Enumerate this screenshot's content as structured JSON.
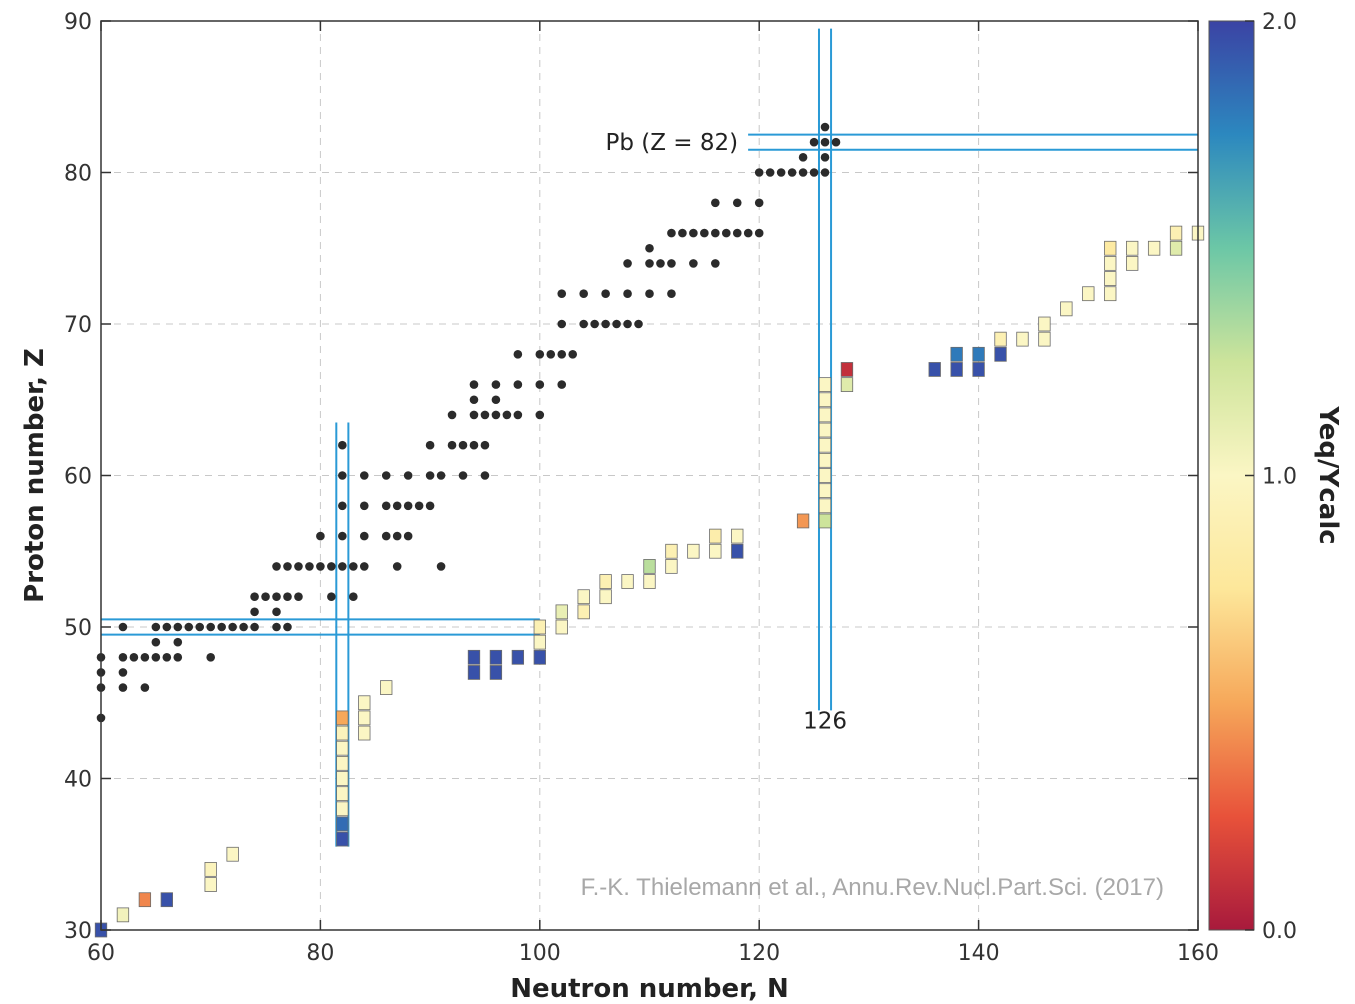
{
  "chart_data": {
    "type": "scatter",
    "xlabel": "Neutron number, N",
    "ylabel": "Proton number, Z",
    "xlim": [
      60,
      160
    ],
    "ylim": [
      30,
      90
    ],
    "xticks": [
      "60",
      "80",
      "100",
      "120",
      "140",
      "160"
    ],
    "yticks": [
      "30",
      "40",
      "50",
      "60",
      "70",
      "80",
      "90"
    ],
    "grid": true,
    "annotations": {
      "pb_label": "Pb (Z = 82)",
      "n126_label": "126"
    },
    "credit": "F.-K. Thielemann et al., Annu.Rev.Nucl.Part.Sci. (2017)",
    "magic_lines": {
      "Z": [
        50,
        82
      ],
      "N": [
        82,
        126
      ]
    },
    "colorbar": {
      "label": "Yeq/Ycalc",
      "ticks": [
        "0.0",
        "1.0",
        "2.0"
      ],
      "range": [
        0,
        2
      ],
      "colors": [
        "#a81a3c",
        "#e8523a",
        "#f6a85a",
        "#fde79a",
        "#fbf6c4",
        "#cde49b",
        "#6cc7a6",
        "#2c88bf",
        "#3b43a4"
      ]
    },
    "stable_nuclei": [
      [
        60,
        44
      ],
      [
        60,
        46
      ],
      [
        60,
        47
      ],
      [
        60,
        48
      ],
      [
        62,
        46
      ],
      [
        62,
        47
      ],
      [
        62,
        48
      ],
      [
        62,
        50
      ],
      [
        63,
        48
      ],
      [
        64,
        46
      ],
      [
        64,
        48
      ],
      [
        65,
        48
      ],
      [
        65,
        49
      ],
      [
        65,
        50
      ],
      [
        66,
        48
      ],
      [
        66,
        50
      ],
      [
        67,
        48
      ],
      [
        67,
        49
      ],
      [
        67,
        50
      ],
      [
        68,
        50
      ],
      [
        69,
        50
      ],
      [
        70,
        48
      ],
      [
        70,
        50
      ],
      [
        71,
        50
      ],
      [
        72,
        50
      ],
      [
        73,
        50
      ],
      [
        74,
        50
      ],
      [
        74,
        52
      ],
      [
        74,
        51
      ],
      [
        75,
        52
      ],
      [
        76,
        50
      ],
      [
        76,
        51
      ],
      [
        76,
        52
      ],
      [
        76,
        54
      ],
      [
        77,
        50
      ],
      [
        77,
        52
      ],
      [
        77,
        54
      ],
      [
        78,
        52
      ],
      [
        78,
        54
      ],
      [
        79,
        54
      ],
      [
        80,
        54
      ],
      [
        80,
        56
      ],
      [
        81,
        52
      ],
      [
        81,
        54
      ],
      [
        82,
        54
      ],
      [
        82,
        56
      ],
      [
        82,
        58
      ],
      [
        82,
        60
      ],
      [
        82,
        62
      ],
      [
        83,
        52
      ],
      [
        83,
        54
      ],
      [
        84,
        54
      ],
      [
        84,
        56
      ],
      [
        84,
        58
      ],
      [
        84,
        60
      ],
      [
        86,
        56
      ],
      [
        86,
        58
      ],
      [
        86,
        60
      ],
      [
        87,
        54
      ],
      [
        87,
        56
      ],
      [
        87,
        58
      ],
      [
        88,
        56
      ],
      [
        88,
        58
      ],
      [
        88,
        60
      ],
      [
        89,
        58
      ],
      [
        90,
        58
      ],
      [
        90,
        60
      ],
      [
        90,
        62
      ],
      [
        91,
        54
      ],
      [
        91,
        60
      ],
      [
        92,
        62
      ],
      [
        92,
        64
      ],
      [
        93,
        60
      ],
      [
        93,
        62
      ],
      [
        94,
        62
      ],
      [
        94,
        64
      ],
      [
        94,
        65
      ],
      [
        94,
        66
      ],
      [
        95,
        60
      ],
      [
        95,
        62
      ],
      [
        95,
        64
      ],
      [
        96,
        64
      ],
      [
        96,
        65
      ],
      [
        96,
        66
      ],
      [
        97,
        64
      ],
      [
        98,
        64
      ],
      [
        98,
        66
      ],
      [
        98,
        68
      ],
      [
        100,
        64
      ],
      [
        100,
        66
      ],
      [
        100,
        68
      ],
      [
        101,
        68
      ],
      [
        102,
        66
      ],
      [
        102,
        68
      ],
      [
        102,
        70
      ],
      [
        102,
        72
      ],
      [
        103,
        68
      ],
      [
        104,
        70
      ],
      [
        104,
        72
      ],
      [
        105,
        70
      ],
      [
        106,
        70
      ],
      [
        106,
        72
      ],
      [
        107,
        70
      ],
      [
        108,
        70
      ],
      [
        108,
        72
      ],
      [
        108,
        74
      ],
      [
        109,
        70
      ],
      [
        110,
        72
      ],
      [
        110,
        74
      ],
      [
        110,
        75
      ],
      [
        111,
        74
      ],
      [
        112,
        72
      ],
      [
        112,
        74
      ],
      [
        112,
        76
      ],
      [
        113,
        76
      ],
      [
        114,
        74
      ],
      [
        114,
        76
      ],
      [
        115,
        76
      ],
      [
        116,
        74
      ],
      [
        116,
        76
      ],
      [
        116,
        78
      ],
      [
        117,
        76
      ],
      [
        118,
        76
      ],
      [
        118,
        78
      ],
      [
        119,
        76
      ],
      [
        120,
        76
      ],
      [
        120,
        78
      ],
      [
        120,
        80
      ],
      [
        121,
        80
      ],
      [
        122,
        80
      ],
      [
        123,
        80
      ],
      [
        124,
        80
      ],
      [
        124,
        81
      ],
      [
        125,
        80
      ],
      [
        125,
        82
      ],
      [
        126,
        80
      ],
      [
        126,
        81
      ],
      [
        126,
        82
      ],
      [
        126,
        83
      ],
      [
        127,
        82
      ]
    ],
    "ratio_points": [
      {
        "n": 60,
        "z": 30,
        "r": 1.95
      },
      {
        "n": 62,
        "z": 31,
        "r": 1.05
      },
      {
        "n": 64,
        "z": 32,
        "r": 0.4
      },
      {
        "n": 66,
        "z": 32,
        "r": 1.95
      },
      {
        "n": 70,
        "z": 33,
        "r": 1.0
      },
      {
        "n": 70,
        "z": 34,
        "r": 0.95
      },
      {
        "n": 72,
        "z": 35,
        "r": 1.0
      },
      {
        "n": 82,
        "z": 36,
        "r": 1.95
      },
      {
        "n": 82,
        "z": 37,
        "r": 1.85
      },
      {
        "n": 82,
        "z": 38,
        "r": 1.0
      },
      {
        "n": 82,
        "z": 39,
        "r": 1.0
      },
      {
        "n": 82,
        "z": 40,
        "r": 1.0
      },
      {
        "n": 82,
        "z": 41,
        "r": 1.0
      },
      {
        "n": 82,
        "z": 42,
        "r": 1.0
      },
      {
        "n": 82,
        "z": 43,
        "r": 0.95
      },
      {
        "n": 82,
        "z": 44,
        "r": 0.5
      },
      {
        "n": 84,
        "z": 43,
        "r": 1.0
      },
      {
        "n": 84,
        "z": 44,
        "r": 1.0
      },
      {
        "n": 84,
        "z": 45,
        "r": 1.0
      },
      {
        "n": 86,
        "z": 46,
        "r": 1.0
      },
      {
        "n": 94,
        "z": 47,
        "r": 1.95
      },
      {
        "n": 94,
        "z": 48,
        "r": 1.95
      },
      {
        "n": 96,
        "z": 47,
        "r": 1.95
      },
      {
        "n": 96,
        "z": 48,
        "r": 1.95
      },
      {
        "n": 98,
        "z": 48,
        "r": 1.95
      },
      {
        "n": 100,
        "z": 48,
        "r": 1.95
      },
      {
        "n": 100,
        "z": 49,
        "r": 1.0
      },
      {
        "n": 100,
        "z": 50,
        "r": 0.9
      },
      {
        "n": 102,
        "z": 50,
        "r": 1.0
      },
      {
        "n": 102,
        "z": 51,
        "r": 1.1
      },
      {
        "n": 104,
        "z": 51,
        "r": 0.9
      },
      {
        "n": 104,
        "z": 52,
        "r": 1.0
      },
      {
        "n": 106,
        "z": 52,
        "r": 1.0
      },
      {
        "n": 106,
        "z": 53,
        "r": 0.9
      },
      {
        "n": 108,
        "z": 53,
        "r": 1.0
      },
      {
        "n": 110,
        "z": 53,
        "r": 1.0
      },
      {
        "n": 110,
        "z": 54,
        "r": 1.3
      },
      {
        "n": 112,
        "z": 54,
        "r": 1.0
      },
      {
        "n": 112,
        "z": 55,
        "r": 0.9
      },
      {
        "n": 114,
        "z": 55,
        "r": 1.0
      },
      {
        "n": 116,
        "z": 55,
        "r": 1.0
      },
      {
        "n": 116,
        "z": 56,
        "r": 0.85
      },
      {
        "n": 118,
        "z": 55,
        "r": 1.95
      },
      {
        "n": 118,
        "z": 56,
        "r": 1.0
      },
      {
        "n": 124,
        "z": 57,
        "r": 0.45
      },
      {
        "n": 126,
        "z": 57,
        "r": 1.25
      },
      {
        "n": 126,
        "z": 58,
        "r": 1.0
      },
      {
        "n": 126,
        "z": 59,
        "r": 1.0
      },
      {
        "n": 126,
        "z": 60,
        "r": 1.0
      },
      {
        "n": 126,
        "z": 61,
        "r": 1.0
      },
      {
        "n": 126,
        "z": 62,
        "r": 1.0
      },
      {
        "n": 126,
        "z": 63,
        "r": 1.0
      },
      {
        "n": 126,
        "z": 64,
        "r": 1.0
      },
      {
        "n": 126,
        "z": 65,
        "r": 1.0
      },
      {
        "n": 126,
        "z": 66,
        "r": 1.0
      },
      {
        "n": 128,
        "z": 66,
        "r": 1.15
      },
      {
        "n": 128,
        "z": 67,
        "r": 0.1
      },
      {
        "n": 136,
        "z": 67,
        "r": 1.95
      },
      {
        "n": 138,
        "z": 67,
        "r": 1.95
      },
      {
        "n": 138,
        "z": 68,
        "r": 1.8
      },
      {
        "n": 140,
        "z": 67,
        "r": 1.95
      },
      {
        "n": 140,
        "z": 68,
        "r": 1.8
      },
      {
        "n": 142,
        "z": 68,
        "r": 1.95
      },
      {
        "n": 142,
        "z": 69,
        "r": 0.9
      },
      {
        "n": 144,
        "z": 69,
        "r": 1.0
      },
      {
        "n": 146,
        "z": 69,
        "r": 1.0
      },
      {
        "n": 146,
        "z": 70,
        "r": 1.0
      },
      {
        "n": 148,
        "z": 71,
        "r": 1.0
      },
      {
        "n": 150,
        "z": 72,
        "r": 1.0
      },
      {
        "n": 152,
        "z": 72,
        "r": 1.0
      },
      {
        "n": 152,
        "z": 73,
        "r": 1.0
      },
      {
        "n": 152,
        "z": 74,
        "r": 1.0
      },
      {
        "n": 152,
        "z": 75,
        "r": 0.8
      },
      {
        "n": 154,
        "z": 74,
        "r": 1.0
      },
      {
        "n": 154,
        "z": 75,
        "r": 1.0
      },
      {
        "n": 156,
        "z": 75,
        "r": 1.0
      },
      {
        "n": 158,
        "z": 75,
        "r": 1.15
      },
      {
        "n": 158,
        "z": 76,
        "r": 0.9
      },
      {
        "n": 160,
        "z": 76,
        "r": 1.0
      }
    ]
  }
}
